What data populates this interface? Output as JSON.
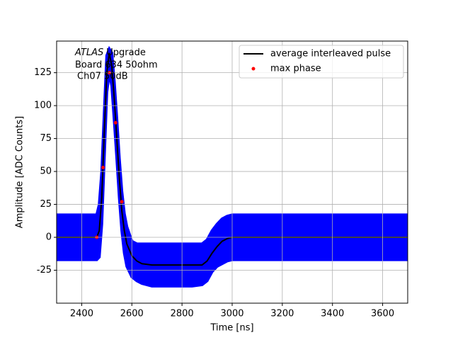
{
  "chart_data": {
    "type": "line",
    "annotation": {
      "italic": "ATLAS",
      "line1": "Upgrade",
      "line2": "Board 634 50ohm",
      "line3": "Ch07 50dB"
    },
    "xlabel": "Time [ns]",
    "ylabel": "Amplitude [ADC Counts]",
    "x": [
      2300,
      2440,
      2460,
      2470,
      2480,
      2490,
      2500,
      2510,
      2520,
      2530,
      2540,
      2550,
      2560,
      2570,
      2580,
      2600,
      2620,
      2640,
      2680,
      2760,
      2840,
      2880,
      2900,
      2920,
      2940,
      2960,
      2980,
      3000,
      3100,
      3700
    ],
    "series": [
      {
        "name": "average interleaved pulse",
        "color": "#000000",
        "values": [
          0,
          0,
          0,
          5,
          30,
          80,
          125,
          140,
          130,
          105,
          75,
          45,
          20,
          5,
          -5,
          -14,
          -18,
          -20,
          -21,
          -21,
          -21,
          -21,
          -18,
          -12,
          -7,
          -3,
          -1,
          0,
          0,
          0
        ]
      }
    ],
    "noise_band": {
      "color": "#0000ff",
      "upper": [
        17,
        17,
        17,
        25,
        50,
        95,
        138,
        143,
        140,
        118,
        90,
        60,
        35,
        18,
        8,
        -3,
        -5,
        -5,
        -5,
        -5,
        -5,
        -5,
        -2,
        5,
        10,
        14,
        16,
        17,
        17,
        17
      ],
      "lower": [
        -17,
        -17,
        -17,
        -15,
        10,
        60,
        110,
        125,
        115,
        88,
        60,
        30,
        5,
        -12,
        -22,
        -30,
        -33,
        -35,
        -37,
        -37,
        -37,
        -36,
        -33,
        -26,
        -22,
        -20,
        -18,
        -17,
        -17,
        -17
      ]
    },
    "points": {
      "name": "max phase",
      "color": "#ff0000",
      "x": [
        2460,
        2485,
        2510,
        2535,
        2560
      ],
      "values": [
        0,
        53,
        125,
        87,
        27
      ]
    },
    "xlim": [
      2300,
      3700
    ],
    "ylim": [
      -50,
      149
    ],
    "xticks": [
      2400,
      2600,
      2800,
      3000,
      3200,
      3400,
      3600
    ],
    "yticks": [
      -25,
      0,
      25,
      50,
      75,
      100,
      125
    ],
    "grid": true,
    "legend": "upper right"
  }
}
